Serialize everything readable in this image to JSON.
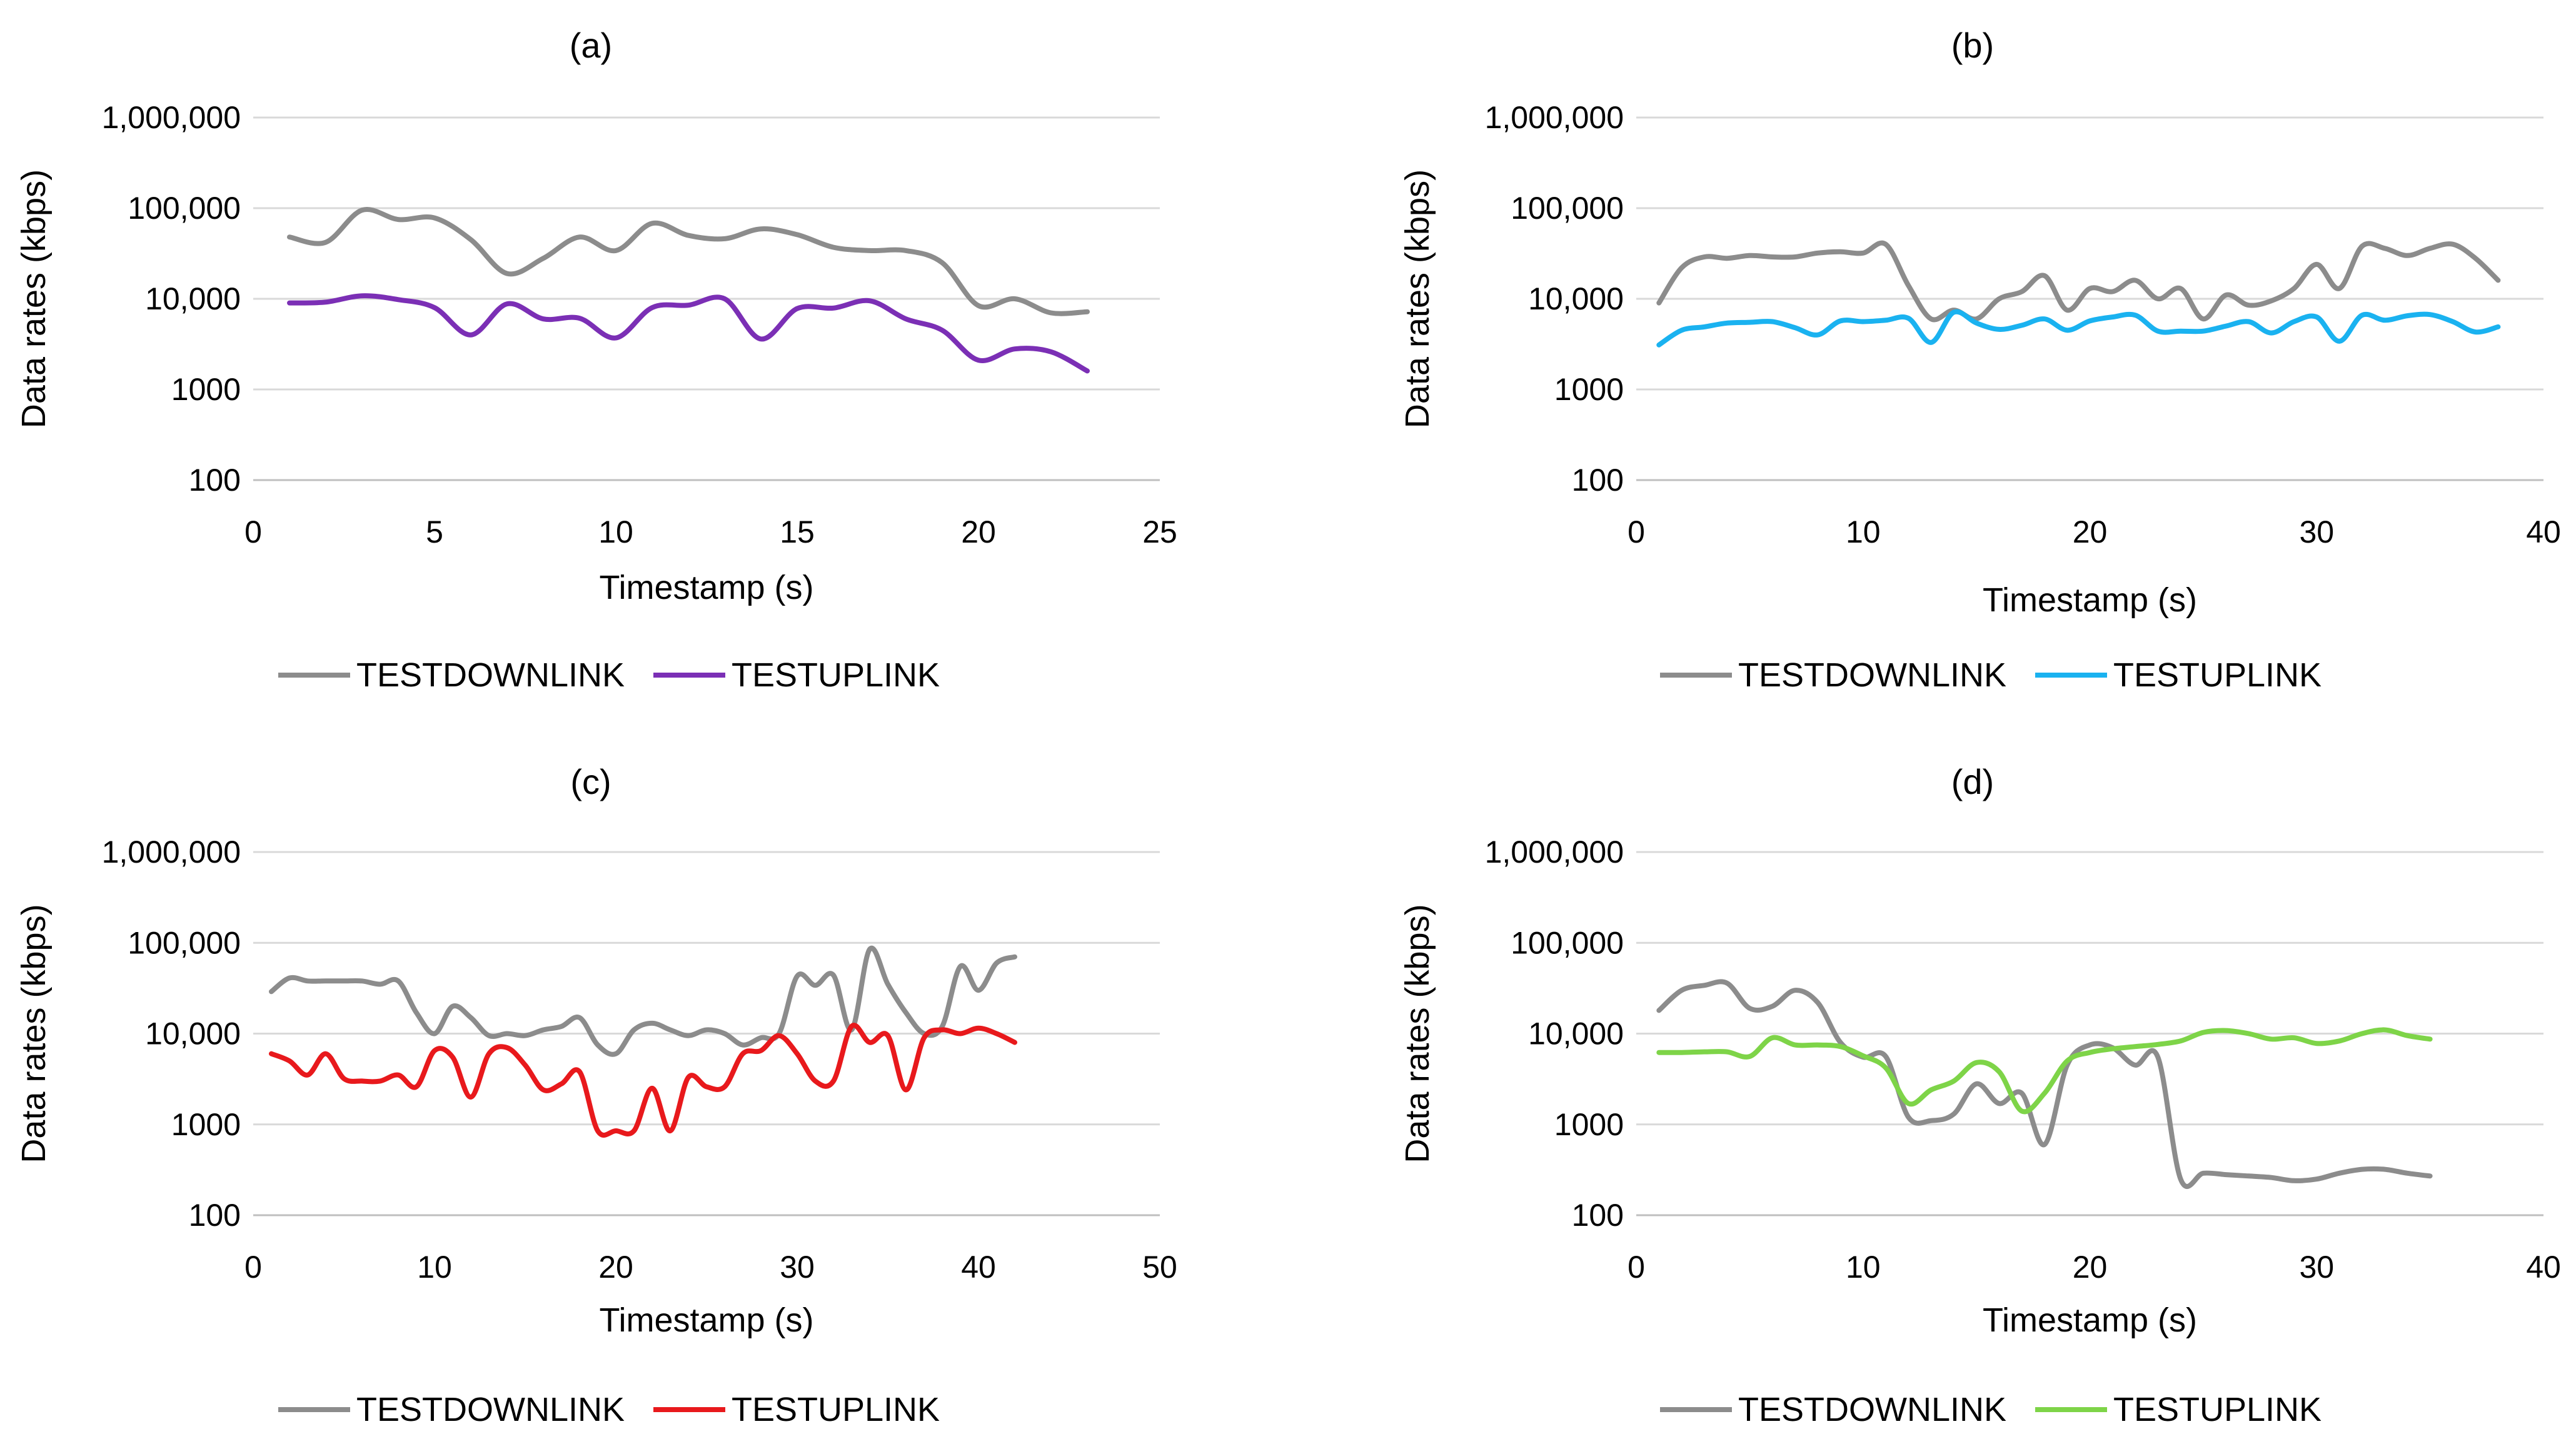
{
  "chart_data": [
    {
      "type": "line",
      "title": "(a)",
      "xlabel": "Timestamp (s)",
      "ylabel": "Data rates (kbps)",
      "xlim": [
        0,
        25
      ],
      "xticks": [
        0,
        5,
        10,
        15,
        20,
        25
      ],
      "xtick_labels": [
        "0",
        "5",
        "10",
        "15",
        "20",
        "25"
      ],
      "yscale": "log",
      "ylim": [
        100,
        1000000
      ],
      "yticks": [
        100,
        1000,
        10000,
        100000,
        1000000
      ],
      "ytick_labels": [
        "100",
        "1000",
        "10,000",
        "100,000",
        "1,000,000"
      ],
      "grid": true,
      "legend": "bottom",
      "x": [
        1,
        2,
        3,
        4,
        5,
        6,
        7,
        8,
        9,
        10,
        11,
        12,
        13,
        14,
        15,
        16,
        17,
        18,
        19,
        20,
        21,
        22,
        23
      ],
      "series": [
        {
          "name": "TESTDOWNLINK",
          "color": "#8c8c8c",
          "values": [
            48000,
            42000,
            95000,
            75000,
            78000,
            45000,
            19000,
            28000,
            48000,
            34000,
            68000,
            50000,
            46000,
            59000,
            51000,
            37000,
            34000,
            34000,
            25000,
            8400,
            10000,
            7000,
            7200
          ]
        },
        {
          "name": "TESTUPLINK",
          "color": "#7b2fb5",
          "values": [
            9000,
            9200,
            10800,
            9800,
            8000,
            4000,
            8800,
            6000,
            6100,
            3700,
            8000,
            8500,
            10000,
            3600,
            7800,
            7900,
            9500,
            6000,
            4500,
            2100,
            2800,
            2600,
            1600
          ]
        }
      ]
    },
    {
      "type": "line",
      "title": "(b)",
      "xlabel": "Timestamp (s)",
      "ylabel": "Data rates (kbps)",
      "xlim": [
        0,
        40
      ],
      "xticks": [
        0,
        10,
        20,
        30,
        40
      ],
      "xtick_labels": [
        "0",
        "10",
        "20",
        "30",
        "40"
      ],
      "yscale": "log",
      "ylim": [
        100,
        1000000
      ],
      "yticks": [
        100,
        1000,
        10000,
        100000,
        1000000
      ],
      "ytick_labels": [
        "100",
        "1000",
        "10,000",
        "100,000",
        "1,000,000"
      ],
      "grid": true,
      "legend": "bottom",
      "x": [
        1,
        2,
        3,
        4,
        5,
        6,
        7,
        8,
        9,
        10,
        11,
        12,
        13,
        14,
        15,
        16,
        17,
        18,
        19,
        20,
        21,
        22,
        23,
        24,
        25,
        26,
        27,
        28,
        29,
        30,
        31,
        32,
        33,
        34,
        35,
        36,
        37,
        38
      ],
      "series": [
        {
          "name": "TESTDOWNLINK",
          "color": "#8c8c8c",
          "values": [
            9000,
            22000,
            29000,
            28000,
            30000,
            29000,
            29000,
            32000,
            33000,
            32000,
            40000,
            14000,
            6000,
            7500,
            6000,
            10000,
            12000,
            18000,
            7500,
            13000,
            12000,
            16000,
            10000,
            13000,
            6000,
            11000,
            8500,
            9500,
            13000,
            24000,
            13000,
            38000,
            36000,
            30000,
            36000,
            40000,
            28000,
            16000
          ]
        },
        {
          "name": "TESTUPLINK",
          "color": "#1ab2f0",
          "values": [
            3100,
            4500,
            4900,
            5400,
            5500,
            5600,
            4800,
            4000,
            5700,
            5600,
            5800,
            6100,
            3300,
            7100,
            5400,
            4600,
            5100,
            6000,
            4500,
            5700,
            6300,
            6600,
            4400,
            4400,
            4400,
            5000,
            5600,
            4200,
            5600,
            6300,
            3400,
            6600,
            5800,
            6500,
            6700,
            5600,
            4300,
            4900
          ]
        }
      ]
    },
    {
      "type": "line",
      "title": "(c)",
      "xlabel": "Timestamp (s)",
      "ylabel": "Data rates (kbps)",
      "xlim": [
        0,
        50
      ],
      "xticks": [
        0,
        10,
        20,
        30,
        40,
        50
      ],
      "xtick_labels": [
        "0",
        "10",
        "20",
        "30",
        "40",
        "50"
      ],
      "yscale": "log",
      "ylim": [
        100,
        1000000
      ],
      "yticks": [
        100,
        1000,
        10000,
        100000,
        1000000
      ],
      "ytick_labels": [
        "100",
        "1000",
        "10,000",
        "100,000",
        "1,000,000"
      ],
      "grid": true,
      "legend": "bottom",
      "x": [
        1,
        2,
        3,
        4,
        5,
        6,
        7,
        8,
        9,
        10,
        11,
        12,
        13,
        14,
        15,
        16,
        17,
        18,
        19,
        20,
        21,
        22,
        23,
        24,
        25,
        26,
        27,
        28,
        29,
        30,
        31,
        32,
        33,
        34,
        35,
        36,
        37,
        38,
        39,
        40,
        41,
        42
      ],
      "series": [
        {
          "name": "TESTDOWNLINK",
          "color": "#8c8c8c",
          "values": [
            29000,
            41000,
            38000,
            38000,
            38000,
            38000,
            35000,
            38000,
            17000,
            10000,
            20000,
            15000,
            9500,
            10000,
            9500,
            11000,
            12000,
            15000,
            7500,
            6000,
            11000,
            13000,
            11000,
            9500,
            11000,
            10000,
            7500,
            9000,
            10000,
            43000,
            34000,
            44000,
            11000,
            85000,
            35000,
            17000,
            10000,
            12000,
            55000,
            30000,
            60000,
            70000
          ]
        },
        {
          "name": "TESTUPLINK",
          "color": "#e8191c",
          "values": [
            6000,
            5000,
            3500,
            6000,
            3200,
            3000,
            3000,
            3500,
            2600,
            6500,
            5500,
            2000,
            6000,
            7000,
            4500,
            2400,
            2800,
            3800,
            850,
            850,
            850,
            2500,
            850,
            3300,
            2600,
            2600,
            6000,
            6500,
            9500,
            6000,
            3000,
            3000,
            12000,
            8000,
            9500,
            2400,
            9000,
            11000,
            10000,
            11500,
            10000,
            8000
          ]
        }
      ]
    },
    {
      "type": "line",
      "title": "(d)",
      "xlabel": "Timestamp (s)",
      "ylabel": "Data rates (kbps)",
      "xlim": [
        0,
        40
      ],
      "xticks": [
        0,
        10,
        20,
        30,
        40
      ],
      "xtick_labels": [
        "0",
        "10",
        "20",
        "30",
        "40"
      ],
      "yscale": "log",
      "ylim": [
        100,
        1000000
      ],
      "yticks": [
        100,
        1000,
        10000,
        100000,
        1000000
      ],
      "ytick_labels": [
        "100",
        "1000",
        "10,000",
        "100,000",
        "1,000,000"
      ],
      "grid": true,
      "legend": "bottom",
      "x": [
        1,
        2,
        3,
        4,
        5,
        6,
        7,
        8,
        9,
        10,
        11,
        12,
        13,
        14,
        15,
        16,
        17,
        18,
        19,
        20,
        21,
        22,
        23,
        24,
        25,
        26,
        27,
        28,
        29,
        30,
        31,
        32,
        33,
        34,
        35
      ],
      "series": [
        {
          "name": "TESTDOWNLINK",
          "color": "#8c8c8c",
          "values": [
            18000,
            30000,
            34000,
            36000,
            19000,
            20000,
            30000,
            22000,
            8000,
            5500,
            5600,
            1200,
            1100,
            1300,
            2800,
            1700,
            2200,
            600,
            4500,
            7500,
            7000,
            4500,
            5500,
            250,
            290,
            280,
            270,
            260,
            240,
            250,
            290,
            320,
            320,
            290,
            270
          ]
        },
        {
          "name": "TESTUPLINK",
          "color": "#7ed448",
          "values": [
            6200,
            6200,
            6300,
            6300,
            5600,
            9000,
            7500,
            7500,
            7200,
            5700,
            4200,
            1700,
            2400,
            3000,
            4800,
            3800,
            1400,
            2200,
            5000,
            6200,
            6800,
            7200,
            7600,
            8300,
            10300,
            10800,
            10000,
            8700,
            9000,
            7800,
            8300,
            10000,
            11000,
            9500,
            8700
          ]
        }
      ]
    }
  ]
}
